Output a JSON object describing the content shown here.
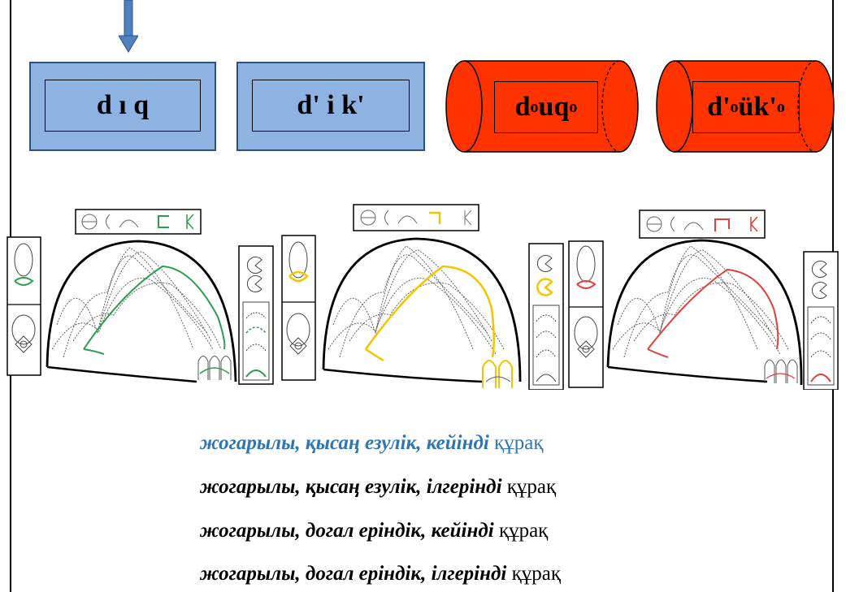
{
  "boxes": [
    {
      "label": "d ı q"
    },
    {
      "label": "d' i k'"
    }
  ],
  "cylinders": [
    {
      "base": "d",
      "sup1": "o",
      "mid": "uq",
      "sup2": "o"
    },
    {
      "base": "d'",
      "sup1": "o",
      "mid": "ük'",
      "sup2": "o"
    }
  ],
  "captions": [
    {
      "italic": "жогарылы,  қысаң езулік, кейінді",
      "tail": "құрақ",
      "color": "#2e75b6"
    },
    {
      "italic": "жогарылы, қысаң езулік, ілгерінді",
      "tail": "құрақ",
      "color": "#000000"
    },
    {
      "italic": "жогарылы,  догал еріндік, кейінді",
      "tail": "құрақ",
      "color": "#000000"
    },
    {
      "italic": "жогарылы, догал еріндік, ілгерінді",
      "tail": "құрақ",
      "color": "#000000"
    }
  ],
  "colors": {
    "box_fill": "#8db3e2",
    "cylinder_fill": "#ff3300",
    "arrow": "#4f81bd",
    "tongue_green": "#2e9e4e",
    "tongue_yellow": "#f5c400",
    "tongue_red": "#e0403a"
  }
}
